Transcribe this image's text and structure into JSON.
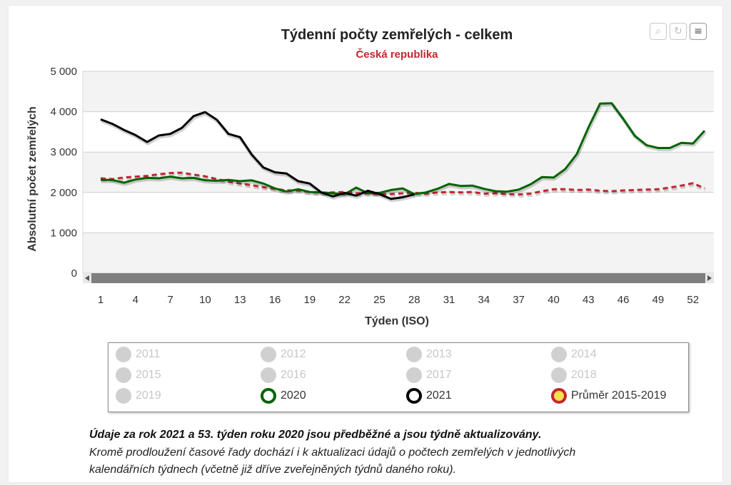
{
  "chart_data": {
    "type": "line",
    "title": "Týdenní počty zemřelých - celkem",
    "subtitle": "Česká republika",
    "xlabel": "Týden (ISO)",
    "ylabel": "Absolutní počet zemřelých",
    "xlim": [
      1,
      53
    ],
    "ylim": [
      0,
      5000
    ],
    "x_ticks": [
      1,
      4,
      7,
      10,
      13,
      16,
      19,
      22,
      25,
      28,
      31,
      34,
      37,
      40,
      43,
      46,
      49,
      52
    ],
    "y_ticks": [
      {
        "value": 0,
        "label": "0"
      },
      {
        "value": 1000,
        "label": "1 000"
      },
      {
        "value": 2000,
        "label": "2 000"
      },
      {
        "value": 3000,
        "label": "3 000"
      },
      {
        "value": 4000,
        "label": "4 000"
      },
      {
        "value": 5000,
        "label": "5 000"
      }
    ],
    "grid": true,
    "series": [
      {
        "name": "2020",
        "color": "#006400",
        "dash": false,
        "x": [
          1,
          2,
          3,
          4,
          5,
          6,
          7,
          8,
          9,
          10,
          11,
          12,
          13,
          14,
          15,
          16,
          17,
          18,
          19,
          20,
          21,
          22,
          23,
          24,
          25,
          26,
          27,
          28,
          29,
          30,
          31,
          32,
          33,
          34,
          35,
          36,
          37,
          38,
          39,
          40,
          41,
          42,
          43,
          44,
          45,
          46,
          47,
          48,
          49,
          50,
          51,
          52,
          53
        ],
        "values": [
          2310,
          2310,
          2240,
          2320,
          2360,
          2350,
          2390,
          2350,
          2360,
          2300,
          2290,
          2310,
          2280,
          2300,
          2220,
          2100,
          2020,
          2080,
          2010,
          2000,
          1980,
          1950,
          2120,
          1980,
          1990,
          2060,
          2100,
          1960,
          2000,
          2090,
          2210,
          2160,
          2170,
          2090,
          2030,
          2020,
          2070,
          2200,
          2380,
          2370,
          2580,
          2950,
          3610,
          4200,
          4210,
          3820,
          3400,
          3170,
          3100,
          3100,
          3230,
          3210,
          3530
        ]
      },
      {
        "name": "2021",
        "color": "#000000",
        "dash": false,
        "x": [
          1,
          2,
          3,
          4,
          5,
          6,
          7,
          8,
          9,
          10,
          11,
          12,
          13,
          14,
          15,
          16,
          17,
          18,
          19,
          20,
          21,
          22,
          23,
          24,
          25,
          26,
          27,
          28
        ],
        "values": [
          3810,
          3700,
          3550,
          3420,
          3250,
          3410,
          3450,
          3600,
          3890,
          3990,
          3800,
          3450,
          3370,
          2940,
          2620,
          2500,
          2470,
          2280,
          2220,
          2000,
          1900,
          1990,
          1920,
          2040,
          1960,
          1840,
          1880,
          1950
        ]
      },
      {
        "name": "Průměr 2015-2019",
        "color": "#c3262f",
        "dash": true,
        "x": [
          1,
          2,
          3,
          4,
          5,
          6,
          7,
          8,
          9,
          10,
          11,
          12,
          13,
          14,
          15,
          16,
          17,
          18,
          19,
          20,
          21,
          22,
          23,
          24,
          25,
          26,
          27,
          28,
          29,
          30,
          31,
          32,
          33,
          34,
          35,
          36,
          37,
          38,
          39,
          40,
          41,
          42,
          43,
          44,
          45,
          46,
          47,
          48,
          49,
          50,
          51,
          52,
          53
        ],
        "values": [
          2350,
          2330,
          2370,
          2390,
          2410,
          2450,
          2480,
          2490,
          2440,
          2400,
          2330,
          2270,
          2220,
          2180,
          2130,
          2090,
          2050,
          2050,
          2010,
          1990,
          2000,
          2010,
          1980,
          1980,
          1960,
          1960,
          1980,
          1990,
          1970,
          2000,
          2010,
          2000,
          2010,
          1970,
          1980,
          1960,
          1950,
          1970,
          2030,
          2080,
          2080,
          2060,
          2070,
          2040,
          2030,
          2050,
          2060,
          2070,
          2080,
          2120,
          2170,
          2230,
          2100
        ]
      }
    ],
    "legend": {
      "placement": "bottom",
      "items": [
        {
          "label": "2011",
          "active": false
        },
        {
          "label": "2012",
          "active": false
        },
        {
          "label": "2013",
          "active": false
        },
        {
          "label": "2014",
          "active": false
        },
        {
          "label": "2015",
          "active": false
        },
        {
          "label": "2016",
          "active": false
        },
        {
          "label": "2017",
          "active": false
        },
        {
          "label": "2018",
          "active": false
        },
        {
          "label": "2019",
          "active": false
        },
        {
          "label": "2020",
          "active": true,
          "ring": "#006400",
          "fill": "#ffffff"
        },
        {
          "label": "2021",
          "active": true,
          "ring": "#000000",
          "fill": "#ffffff"
        },
        {
          "label": "Průměr 2015-2019",
          "active": true,
          "ring": "#c3262f",
          "fill": "#f5e14a"
        }
      ]
    }
  },
  "toolbar": {
    "zoom_icon": "zoom-icon",
    "reset_icon": "reset-icon",
    "menu_icon": "menu-icon"
  },
  "notes": {
    "bold": "Údaje za rok 2021 a 53. týden roku 2020 jsou předběžné a jsou týdně aktualizovány.",
    "line1": "Kromě prodloužení časové řady dochází i k aktualizaci údajů o počtech zemřelých v jednotlivých",
    "line2": "kalendářních týdnech (včetně již dříve zveřejněných týdnů daného roku)."
  }
}
